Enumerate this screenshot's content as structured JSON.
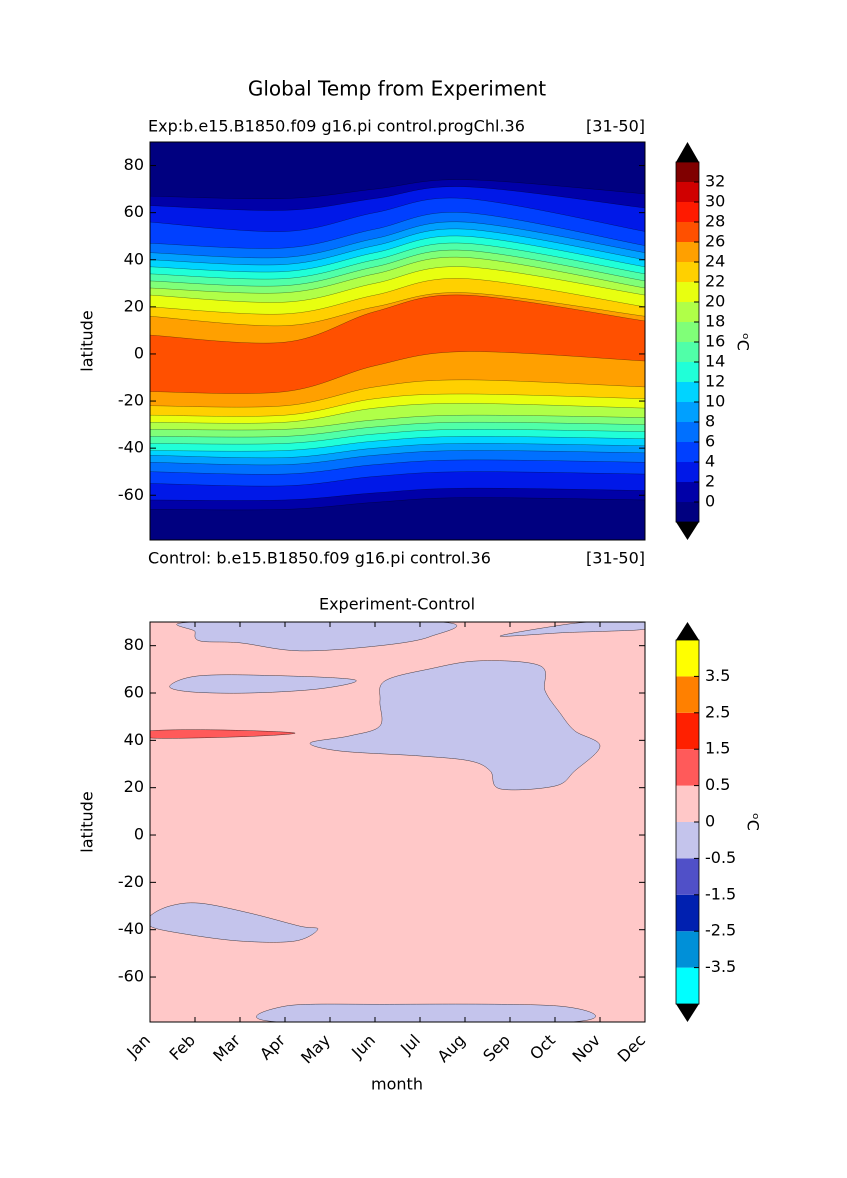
{
  "title": "Global Temp from Experiment",
  "chart_data": [
    {
      "type": "contour",
      "subtitle_left": "Exp:b.e15.B1850.f09 g16.pi control.progChl.36",
      "subtitle_right": "[31-50]",
      "footer_left": "Control: b.e15.B1850.f09 g16.pi control.36",
      "footer_right": "[31-50]",
      "ylabel": "latitude",
      "xlim": [
        0,
        11
      ],
      "ylim": [
        -79,
        90
      ],
      "yticks": [
        -60,
        -40,
        -20,
        0,
        20,
        40,
        60,
        80
      ],
      "colorbar": {
        "label": "ᵒC",
        "levels": [
          -2,
          0,
          2,
          4,
          6,
          8,
          10,
          12,
          14,
          16,
          18,
          20,
          22,
          24,
          26,
          28,
          30,
          32,
          34
        ],
        "colors": [
          "#000080",
          "#0000a8",
          "#0018e8",
          "#0040ff",
          "#0070ff",
          "#00a0ff",
          "#00d4ff",
          "#20ffd8",
          "#50ffa8",
          "#80ff78",
          "#b0ff48",
          "#e8ff10",
          "#ffd000",
          "#ffa000",
          "#ff5000",
          "#ff1a00",
          "#d00000",
          "#800000"
        ],
        "ticks": [
          0,
          2,
          4,
          6,
          8,
          10,
          12,
          14,
          16,
          18,
          20,
          22,
          24,
          26,
          28,
          30,
          32
        ]
      },
      "contour_months": [
        0,
        3,
        5,
        7,
        11
      ],
      "contours": [
        {
          "level": 0,
          "north": [
            67,
            66,
            70,
            74,
            68
          ],
          "south": [
            -66,
            -66,
            -63,
            -61,
            -62
          ]
        },
        {
          "level": 2,
          "north": [
            63,
            61,
            66,
            71,
            62
          ],
          "south": [
            -62,
            -62,
            -59,
            -57,
            -58
          ]
        },
        {
          "level": 4,
          "north": [
            56,
            52,
            60,
            66,
            52
          ],
          "south": [
            -55,
            -56,
            -52,
            -50,
            -51
          ]
        },
        {
          "level": 6,
          "north": [
            47,
            45,
            53,
            60,
            46
          ],
          "south": [
            -50,
            -51,
            -47,
            -45,
            -46
          ]
        },
        {
          "level": 8,
          "north": [
            43,
            41,
            49,
            56,
            43
          ],
          "south": [
            -46,
            -47,
            -43,
            -41,
            -42
          ]
        },
        {
          "level": 10,
          "north": [
            40,
            38,
            46,
            53,
            40
          ],
          "south": [
            -43,
            -44,
            -40,
            -38,
            -39
          ]
        },
        {
          "level": 12,
          "north": [
            37,
            35,
            43,
            50,
            37
          ],
          "south": [
            -41,
            -41,
            -37,
            -35,
            -36
          ]
        },
        {
          "level": 14,
          "north": [
            34,
            32,
            40,
            47,
            34
          ],
          "south": [
            -38,
            -38,
            -34,
            -32,
            -33
          ]
        },
        {
          "level": 16,
          "north": [
            31,
            29,
            37,
            44,
            31
          ],
          "south": [
            -35,
            -35,
            -31,
            -29,
            -30
          ]
        },
        {
          "level": 18,
          "north": [
            28,
            26,
            34,
            41,
            28
          ],
          "south": [
            -32,
            -32,
            -28,
            -26,
            -27
          ]
        },
        {
          "level": 20,
          "north": [
            25,
            22,
            30,
            37,
            25
          ],
          "south": [
            -29,
            -29,
            -23,
            -21,
            -23
          ]
        },
        {
          "level": 22,
          "north": [
            20,
            17,
            25,
            32,
            20
          ],
          "south": [
            -26,
            -26,
            -19,
            -17,
            -19
          ]
        },
        {
          "level": 24,
          "north": [
            16,
            12,
            20,
            26,
            16
          ],
          "south": [
            -22,
            -22,
            -14,
            -11,
            -14
          ]
        },
        {
          "level": 26,
          "north": [
            8,
            5,
            18,
            25,
            14
          ],
          "south": [
            -16,
            -16,
            -5,
            1,
            -3
          ]
        }
      ]
    },
    {
      "type": "contour-regions",
      "title": "Experiment-Control",
      "xlabel": "month",
      "ylabel": "latitude",
      "categories": [
        "Jan",
        "Feb",
        "Mar",
        "Apr",
        "May",
        "Jun",
        "Jul",
        "Aug",
        "Sep",
        "Oct",
        "Nov",
        "Dec"
      ],
      "xlim": [
        0,
        11
      ],
      "ylim": [
        -79,
        90
      ],
      "yticks": [
        -60,
        -40,
        -20,
        0,
        20,
        40,
        60,
        80
      ],
      "colorbar": {
        "label": "ᵒC",
        "levels": [
          -4.5,
          -3.5,
          -2.5,
          -1.5,
          -0.5,
          0,
          0.5,
          1.5,
          2.5,
          3.5,
          4.5
        ],
        "colors": [
          "#00ffff",
          "#0090d8",
          "#0020b0",
          "#5050c8",
          "#c4c4ec",
          "#ffc8c8",
          "#ff5a5a",
          "#ff2000",
          "#ff8000",
          "#ffff00"
        ],
        "ticks": [
          -3.5,
          -2.5,
          -1.5,
          -0.5,
          0,
          0.5,
          1.5,
          2.5,
          3.5
        ]
      },
      "background_level": 0,
      "regions": [
        {
          "level": -0.5,
          "points": [
            [
              1,
              90
            ],
            [
              6.44,
              90
            ],
            [
              6.22,
              83.8
            ],
            [
              5.11,
              80
            ],
            [
              3.33,
              77.8
            ],
            [
              2,
              81.2
            ],
            [
              1.11,
              82
            ],
            [
              1,
              86
            ]
          ]
        },
        {
          "level": -0.5,
          "points": [
            [
              7.78,
              84
            ],
            [
              8.9,
              88
            ],
            [
              9.8,
              90
            ],
            [
              11,
              90
            ],
            [
              11,
              87
            ],
            [
              10,
              86
            ],
            [
              9.2,
              85.5
            ]
          ]
        },
        {
          "level": -0.5,
          "points": [
            [
              0.44,
              63
            ],
            [
              1.11,
              67.3
            ],
            [
              2.89,
              67.3
            ],
            [
              4.56,
              65.5
            ],
            [
              3.78,
              61.8
            ],
            [
              2.22,
              60
            ],
            [
              0.89,
              60.5
            ]
          ]
        },
        {
          "level": -0.5,
          "points": [
            [
              5.22,
              65.1
            ],
            [
              6.22,
              70.2
            ],
            [
              7.33,
              73.6
            ],
            [
              8.67,
              71.5
            ],
            [
              8.78,
              60.9
            ],
            [
              9.11,
              51.6
            ],
            [
              9.44,
              44
            ],
            [
              10,
              37.6
            ],
            [
              9.44,
              27.1
            ],
            [
              9,
              20.7
            ],
            [
              7.78,
              19.5
            ],
            [
              7.56,
              27.1
            ],
            [
              7.11,
              31.3
            ],
            [
              6,
              33.4
            ],
            [
              4.22,
              35.5
            ],
            [
              3.56,
              38.9
            ],
            [
              4.44,
              41.9
            ],
            [
              5.11,
              46.1
            ],
            [
              5.11,
              56.7
            ]
          ]
        },
        {
          "level": -0.5,
          "points": [
            [
              0,
              -34.3
            ],
            [
              0.44,
              -30
            ],
            [
              1.11,
              -28.8
            ],
            [
              2.22,
              -33
            ],
            [
              3.33,
              -38.5
            ],
            [
              3.73,
              -39.8
            ],
            [
              3.22,
              -44.8
            ],
            [
              2,
              -44.8
            ],
            [
              0.67,
              -41.5
            ],
            [
              0,
              -38.5
            ]
          ]
        },
        {
          "level": -0.5,
          "points": [
            [
              2.89,
              -79
            ],
            [
              3.0,
              -72.3
            ],
            [
              5.11,
              -71.5
            ],
            [
              9.11,
              -72.3
            ],
            [
              9.33,
              -79
            ]
          ]
        },
        {
          "level": 0.5,
          "points": [
            [
              0,
              44
            ],
            [
              1.56,
              44.4
            ],
            [
              3.22,
              43.1
            ],
            [
              2,
              41.5
            ],
            [
              0,
              41
            ]
          ]
        }
      ]
    }
  ]
}
